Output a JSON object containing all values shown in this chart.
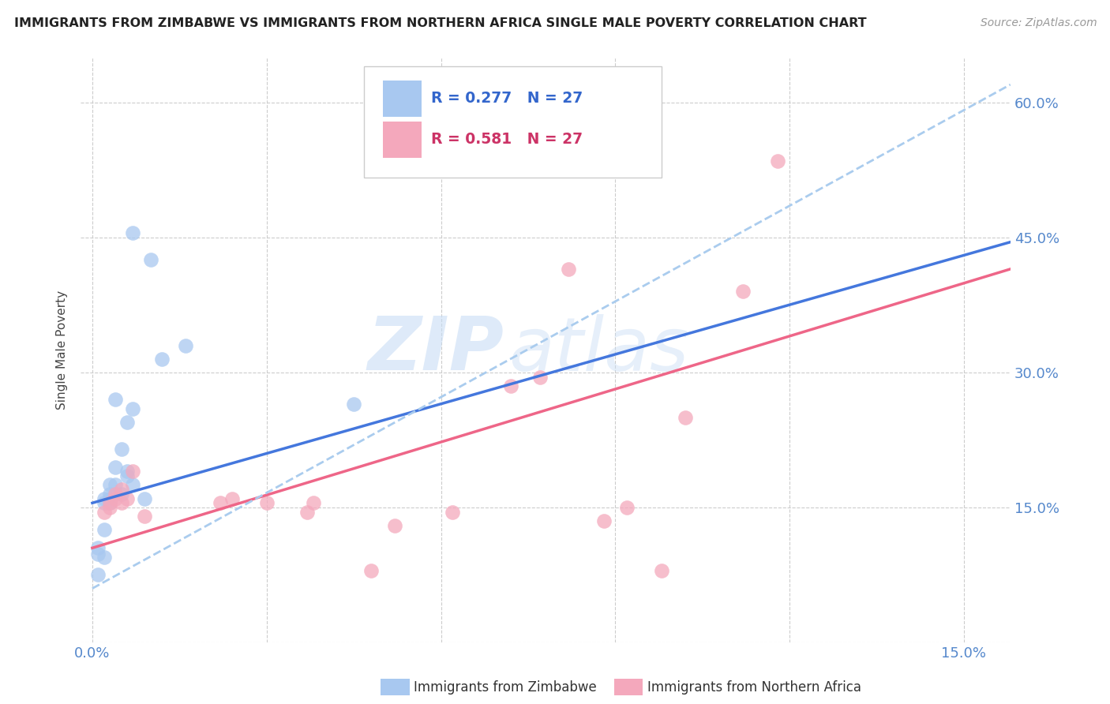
{
  "title": "IMMIGRANTS FROM ZIMBABWE VS IMMIGRANTS FROM NORTHERN AFRICA SINGLE MALE POVERTY CORRELATION CHART",
  "source": "Source: ZipAtlas.com",
  "xlabel_blue": "Immigrants from Zimbabwe",
  "xlabel_pink": "Immigrants from Northern Africa",
  "ylabel": "Single Male Poverty",
  "x_ticks": [
    0.0,
    0.03,
    0.06,
    0.09,
    0.12,
    0.15
  ],
  "x_tick_labels": [
    "0.0%",
    "",
    "",
    "",
    "",
    "15.0%"
  ],
  "y_ticks": [
    0.0,
    0.15,
    0.3,
    0.45,
    0.6
  ],
  "y_tick_labels_right": [
    "",
    "15.0%",
    "30.0%",
    "45.0%",
    "60.0%"
  ],
  "x_min": -0.002,
  "x_max": 0.158,
  "y_min": 0.04,
  "y_max": 0.65,
  "legend_r_blue": "R = 0.277",
  "legend_n_blue": "N = 27",
  "legend_r_pink": "R = 0.581",
  "legend_n_pink": "N = 27",
  "blue_color": "#a8c8f0",
  "pink_color": "#f4a8bc",
  "blue_line_color": "#4477dd",
  "pink_line_color": "#ee6688",
  "dashed_line_color": "#aaccee",
  "watermark_zip": "ZIP",
  "watermark_atlas": "atlas",
  "blue_scatter_x": [
    0.001,
    0.007,
    0.01,
    0.012,
    0.016,
    0.002,
    0.002,
    0.003,
    0.003,
    0.003,
    0.003,
    0.004,
    0.004,
    0.004,
    0.005,
    0.005,
    0.006,
    0.006,
    0.007,
    0.009,
    0.002,
    0.001,
    0.001,
    0.002,
    0.006,
    0.007,
    0.045
  ],
  "blue_scatter_y": [
    0.075,
    0.455,
    0.425,
    0.315,
    0.33,
    0.155,
    0.16,
    0.155,
    0.165,
    0.16,
    0.175,
    0.195,
    0.27,
    0.175,
    0.215,
    0.165,
    0.245,
    0.185,
    0.175,
    0.16,
    0.095,
    0.098,
    0.105,
    0.125,
    0.19,
    0.26,
    0.265
  ],
  "pink_scatter_x": [
    0.002,
    0.003,
    0.003,
    0.004,
    0.004,
    0.005,
    0.005,
    0.006,
    0.007,
    0.009,
    0.022,
    0.024,
    0.03,
    0.037,
    0.038,
    0.048,
    0.052,
    0.062,
    0.072,
    0.077,
    0.082,
    0.088,
    0.092,
    0.098,
    0.102,
    0.112,
    0.118
  ],
  "pink_scatter_y": [
    0.145,
    0.15,
    0.155,
    0.16,
    0.165,
    0.17,
    0.155,
    0.16,
    0.19,
    0.14,
    0.155,
    0.16,
    0.155,
    0.145,
    0.155,
    0.08,
    0.13,
    0.145,
    0.285,
    0.295,
    0.415,
    0.135,
    0.15,
    0.08,
    0.25,
    0.39,
    0.535
  ],
  "blue_trend_x": [
    0.0,
    0.158
  ],
  "blue_trend_y": [
    0.155,
    0.445
  ],
  "pink_trend_x": [
    0.0,
    0.158
  ],
  "pink_trend_y": [
    0.105,
    0.415
  ],
  "dashed_trend_x": [
    0.0,
    0.158
  ],
  "dashed_trend_y": [
    0.06,
    0.62
  ]
}
